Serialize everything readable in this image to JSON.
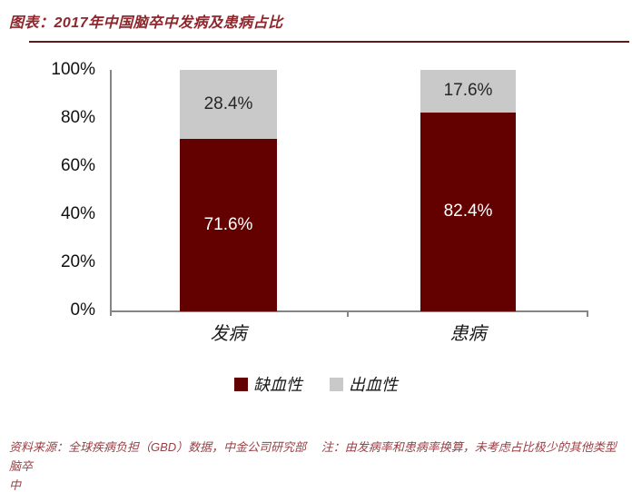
{
  "title": "图表：2017年中国脑卒中发病及患病占比",
  "colors": {
    "ischemic_red": "#630000",
    "hemorrhagic_gray": "#c9c9c9",
    "title_red": "#8e262b",
    "axis_gray": "#858585"
  },
  "chart_data": {
    "type": "bar",
    "stacked": true,
    "grid": false,
    "legend_position": "bottom",
    "title": "2017年中国脑卒中发病及患病占比",
    "categories": [
      "发病",
      "患病"
    ],
    "series": [
      {
        "name": "缺血性",
        "color": "#630000",
        "values": [
          71.6,
          82.4
        ],
        "labels": [
          "71.6%",
          "82.4%"
        ]
      },
      {
        "name": "出血性",
        "color": "#c9c9c9",
        "values": [
          28.4,
          17.6
        ],
        "labels": [
          "28.4%",
          "17.6%"
        ]
      }
    ],
    "ylim": [
      0,
      100
    ],
    "yticks": [
      "100%",
      "80%",
      "60%",
      "40%",
      "20%",
      "0%"
    ]
  },
  "footer": {
    "line1": "资料来源：全球疾病负担（GBD）数据，中金公司研究部　 注：由发病率和患病率换算，未考虑占比极少的其他类型脑卒",
    "line2": "中"
  }
}
